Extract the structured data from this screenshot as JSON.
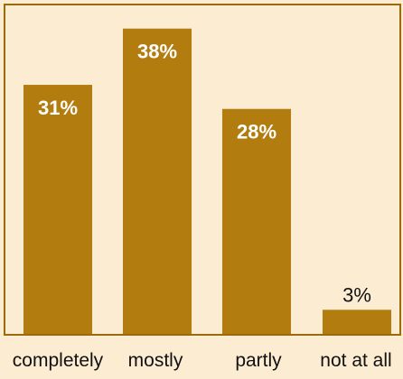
{
  "chart_data": {
    "type": "bar",
    "categories": [
      "completely",
      "mostly",
      "partly",
      "not at all"
    ],
    "values": [
      31,
      38,
      28,
      3
    ],
    "value_labels": [
      "31%",
      "38%",
      "28%",
      "3%"
    ],
    "ylim": [
      0,
      41
    ],
    "grid": false,
    "legend": "none",
    "colors": {
      "bar": "#b27d0e",
      "background": "#fcecd2",
      "frame": "#9c6a0a",
      "label_inside": "#ffffff",
      "label_outside": "#111111"
    }
  }
}
